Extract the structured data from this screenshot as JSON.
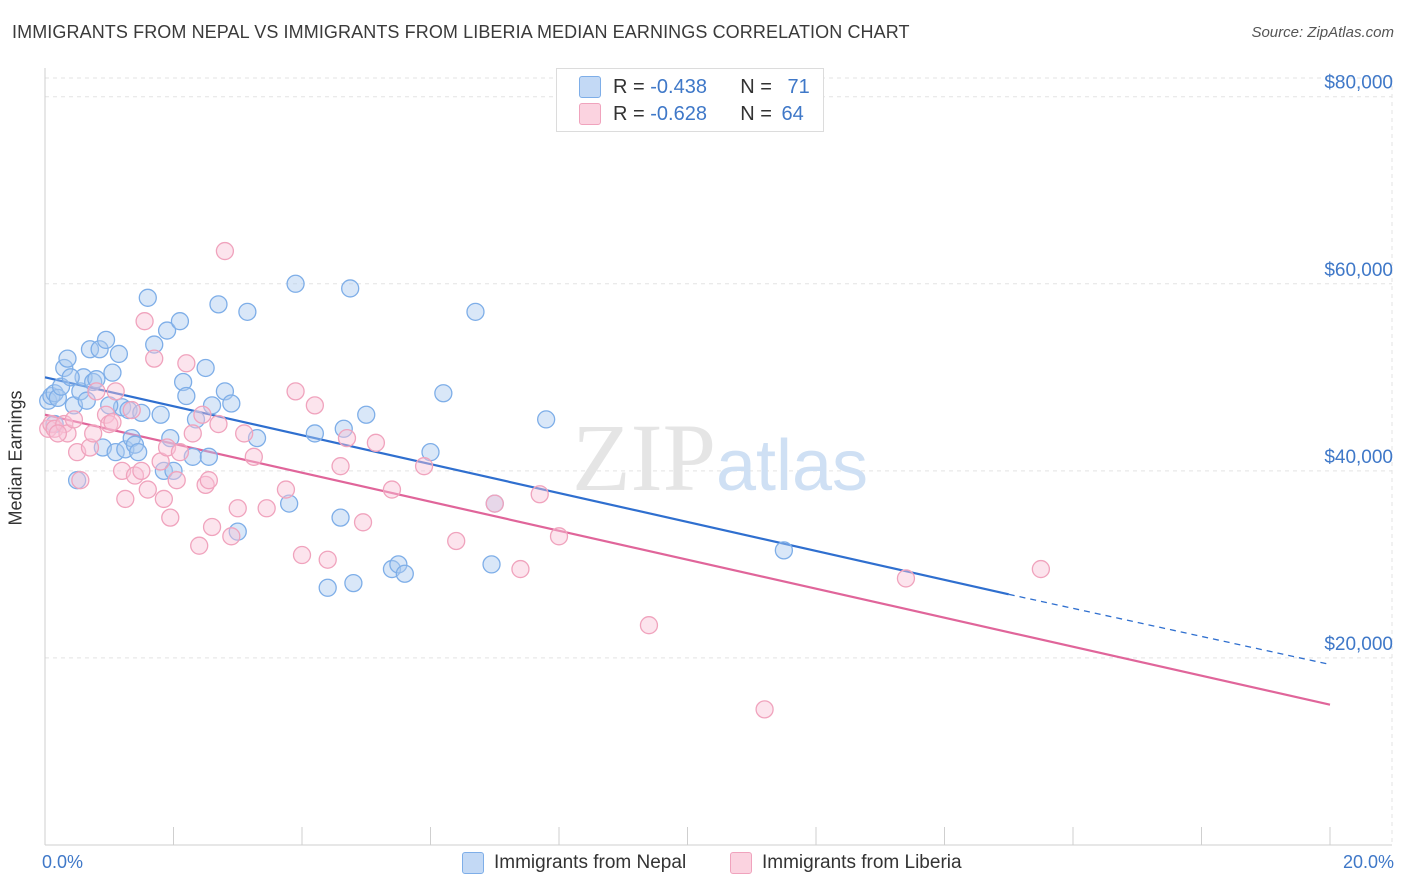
{
  "title": "IMMIGRANTS FROM NEPAL VS IMMIGRANTS FROM LIBERIA MEDIAN EARNINGS CORRELATION CHART",
  "source": "Source: ZipAtlas.com",
  "colors": {
    "nepal": "#7eaee8",
    "nepal_line": "#2f6fcf",
    "liberia": "#f0a3bd",
    "liberia_line": "#e0659a",
    "axis_text": "#3f78c8"
  },
  "legend": {
    "nepal": {
      "r_label": "R = ",
      "r_value": "-0.438",
      "n_label": "N = ",
      "n_value": "71"
    },
    "liberia": {
      "r_label": "R = ",
      "r_value": "-0.628",
      "n_label": "N = ",
      "n_value": "64"
    }
  },
  "bottom_legend": {
    "nepal": "Immigrants from Nepal",
    "liberia": "Immigrants from Liberia"
  },
  "chart_data": {
    "type": "scatter",
    "title": "IMMIGRANTS FROM NEPAL VS IMMIGRANTS FROM LIBERIA MEDIAN EARNINGS CORRELATION CHART",
    "xlabel": "",
    "ylabel": "Median Earnings",
    "xlim": [
      0,
      20
    ],
    "ylim": [
      0,
      82000
    ],
    "x_tick_labels": [
      "0.0%",
      "20.0%"
    ],
    "y_ticks": [
      20000,
      40000,
      60000,
      80000
    ],
    "y_tick_labels": [
      "$20,000",
      "$40,000",
      "$60,000",
      "$80,000"
    ],
    "grid": true,
    "watermark": "ZIPatlas",
    "series": [
      {
        "name": "Immigrants from Nepal",
        "points": [
          [
            0.05,
            47500
          ],
          [
            0.1,
            48000
          ],
          [
            0.15,
            48300
          ],
          [
            0.2,
            47800
          ],
          [
            0.25,
            49000
          ],
          [
            0.3,
            51000
          ],
          [
            0.35,
            52000
          ],
          [
            0.45,
            47000
          ],
          [
            0.5,
            39000
          ],
          [
            0.55,
            48500
          ],
          [
            0.6,
            50000
          ],
          [
            0.65,
            47500
          ],
          [
            0.7,
            53000
          ],
          [
            0.75,
            49500
          ],
          [
            0.8,
            49800
          ],
          [
            0.85,
            53000
          ],
          [
            0.9,
            42500
          ],
          [
            0.95,
            54000
          ],
          [
            1.05,
            50500
          ],
          [
            1.1,
            42000
          ],
          [
            1.15,
            52500
          ],
          [
            1.2,
            46800
          ],
          [
            1.25,
            42300
          ],
          [
            1.3,
            46500
          ],
          [
            1.35,
            43500
          ],
          [
            1.4,
            42800
          ],
          [
            1.45,
            42000
          ],
          [
            1.5,
            46200
          ],
          [
            1.6,
            58500
          ],
          [
            1.7,
            53500
          ],
          [
            1.8,
            46000
          ],
          [
            1.85,
            40000
          ],
          [
            1.9,
            55000
          ],
          [
            1.95,
            43500
          ],
          [
            2.0,
            40000
          ],
          [
            2.1,
            56000
          ],
          [
            2.15,
            49500
          ],
          [
            2.2,
            48000
          ],
          [
            2.3,
            41500
          ],
          [
            2.35,
            45500
          ],
          [
            2.5,
            51000
          ],
          [
            2.55,
            41500
          ],
          [
            2.7,
            57800
          ],
          [
            2.8,
            48500
          ],
          [
            2.9,
            47200
          ],
          [
            3.15,
            57000
          ],
          [
            3.3,
            43500
          ],
          [
            3.8,
            36500
          ],
          [
            3.9,
            60000
          ],
          [
            4.2,
            44000
          ],
          [
            4.4,
            27500
          ],
          [
            4.6,
            35000
          ],
          [
            4.65,
            44500
          ],
          [
            4.75,
            59500
          ],
          [
            4.8,
            28000
          ],
          [
            5.0,
            46000
          ],
          [
            5.4,
            29500
          ],
          [
            5.5,
            30000
          ],
          [
            5.6,
            29000
          ],
          [
            6.0,
            42000
          ],
          [
            6.2,
            48300
          ],
          [
            6.7,
            57000
          ],
          [
            6.95,
            30000
          ],
          [
            7.0,
            36500
          ],
          [
            7.8,
            45500
          ],
          [
            11.5,
            31500
          ],
          [
            3.0,
            33500
          ],
          [
            2.6,
            47000
          ],
          [
            1.0,
            47000
          ],
          [
            0.4,
            50000
          ],
          [
            0.15,
            45000
          ]
        ]
      },
      {
        "name": "Immigrants from Liberia",
        "points": [
          [
            0.05,
            44500
          ],
          [
            0.1,
            45000
          ],
          [
            0.15,
            44500
          ],
          [
            0.3,
            45000
          ],
          [
            0.35,
            44000
          ],
          [
            0.45,
            45500
          ],
          [
            0.5,
            42000
          ],
          [
            0.55,
            39000
          ],
          [
            0.7,
            42500
          ],
          [
            0.75,
            44000
          ],
          [
            0.8,
            48500
          ],
          [
            0.95,
            46000
          ],
          [
            1.0,
            45000
          ],
          [
            1.05,
            45200
          ],
          [
            1.1,
            48500
          ],
          [
            1.2,
            40000
          ],
          [
            1.25,
            37000
          ],
          [
            1.35,
            46500
          ],
          [
            1.4,
            39500
          ],
          [
            1.5,
            40000
          ],
          [
            1.6,
            38000
          ],
          [
            1.7,
            52000
          ],
          [
            1.8,
            41000
          ],
          [
            1.85,
            37000
          ],
          [
            1.9,
            42500
          ],
          [
            1.95,
            35000
          ],
          [
            2.05,
            39000
          ],
          [
            2.1,
            42000
          ],
          [
            2.2,
            51500
          ],
          [
            2.3,
            44000
          ],
          [
            2.4,
            32000
          ],
          [
            2.45,
            46000
          ],
          [
            2.5,
            38500
          ],
          [
            2.55,
            39000
          ],
          [
            2.7,
            45000
          ],
          [
            2.8,
            63500
          ],
          [
            2.9,
            33000
          ],
          [
            3.0,
            36000
          ],
          [
            3.1,
            44000
          ],
          [
            3.25,
            41500
          ],
          [
            3.45,
            36000
          ],
          [
            3.75,
            38000
          ],
          [
            3.9,
            48500
          ],
          [
            4.0,
            31000
          ],
          [
            4.2,
            47000
          ],
          [
            4.4,
            30500
          ],
          [
            4.6,
            40500
          ],
          [
            4.7,
            43500
          ],
          [
            4.95,
            34500
          ],
          [
            5.15,
            43000
          ],
          [
            5.4,
            38000
          ],
          [
            5.9,
            40500
          ],
          [
            6.4,
            32500
          ],
          [
            7.0,
            36500
          ],
          [
            7.4,
            29500
          ],
          [
            7.7,
            37500
          ],
          [
            8.0,
            33000
          ],
          [
            9.4,
            23500
          ],
          [
            11.2,
            14500
          ],
          [
            13.4,
            28500
          ],
          [
            15.5,
            29500
          ],
          [
            0.2,
            44000
          ],
          [
            2.6,
            34000
          ],
          [
            1.55,
            56000
          ]
        ]
      }
    ],
    "trend_lines": [
      {
        "name": "Immigrants from Nepal",
        "x": [
          0,
          15
        ],
        "y": [
          50000,
          26800
        ],
        "dashed_extension_to": [
          20,
          19300
        ]
      },
      {
        "name": "Immigrants from Liberia",
        "x": [
          0,
          20
        ],
        "y": [
          46000,
          15000
        ]
      }
    ]
  }
}
